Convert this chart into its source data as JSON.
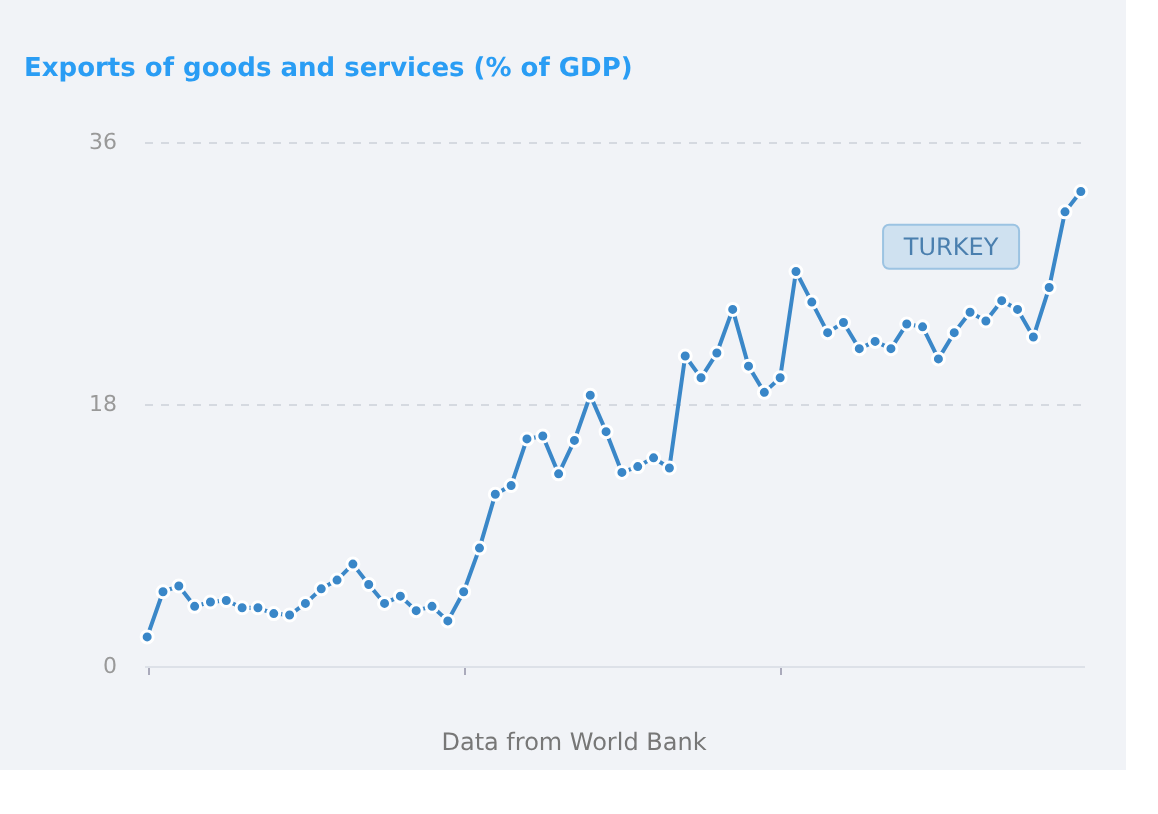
{
  "chart_data": {
    "type": "line",
    "title": "Exports of goods and services (% of GDP)",
    "categories": [
      null,
      null,
      null,
      null,
      null,
      null,
      null,
      null,
      null,
      null,
      null,
      null,
      null,
      null,
      null,
      null,
      null,
      null,
      null,
      null,
      null,
      null,
      null,
      null,
      null,
      null,
      null,
      null,
      null,
      null,
      null,
      null,
      null,
      null,
      null,
      null,
      null,
      null,
      null,
      null,
      null,
      null,
      null,
      null,
      null,
      null,
      null,
      null,
      null,
      null,
      null,
      null,
      null,
      null,
      null,
      null,
      null,
      null,
      null,
      null
    ],
    "series": [
      {
        "name": "TURKEY",
        "color": "#3a87c8",
        "values": [
          2.0,
          5.1,
          5.5,
          4.1,
          4.4,
          4.5,
          4.0,
          4.0,
          3.6,
          3.5,
          4.3,
          5.3,
          5.9,
          7.0,
          5.6,
          4.3,
          4.8,
          3.8,
          4.1,
          3.1,
          5.1,
          8.1,
          11.8,
          12.4,
          15.6,
          15.8,
          13.2,
          15.5,
          18.6,
          16.1,
          13.3,
          13.7,
          14.3,
          13.6,
          21.3,
          19.8,
          21.5,
          24.5,
          20.6,
          18.8,
          19.8,
          27.1,
          25.0,
          22.9,
          23.6,
          21.8,
          22.3,
          21.8,
          23.5,
          23.3,
          21.1,
          22.9,
          24.3,
          23.7,
          25.1,
          24.5,
          22.6,
          26.0,
          31.2,
          32.6
        ]
      }
    ],
    "ylim": [
      0,
      36
    ],
    "yticks": [
      0,
      18,
      36
    ],
    "grid": "y",
    "marker": "circle",
    "line_style": "solid",
    "legend": false,
    "annotations": [
      "Data from World Bank"
    ]
  }
}
